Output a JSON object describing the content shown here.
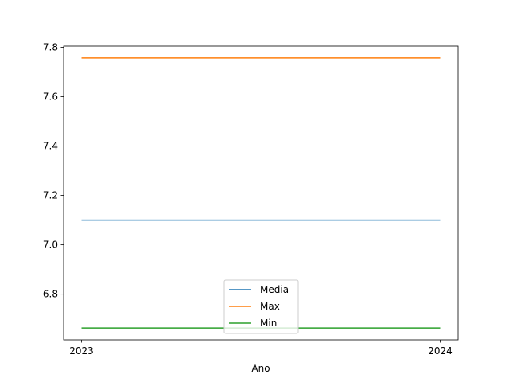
{
  "chart_data": {
    "type": "line",
    "title": "",
    "xlabel": "Ano",
    "ylabel": "",
    "x": [
      "2023",
      "2024"
    ],
    "ylim": [
      6.615,
      7.805
    ],
    "yticks": [
      "6.8",
      "7.0",
      "7.2",
      "7.4",
      "7.6",
      "7.8"
    ],
    "series": [
      {
        "name": "Media",
        "values": [
          7.1,
          7.1
        ],
        "color": "#1f77b4"
      },
      {
        "name": "Max",
        "values": [
          7.757,
          7.757
        ],
        "color": "#ff7f0e"
      },
      {
        "name": "Min",
        "values": [
          6.663,
          6.663
        ],
        "color": "#2ca02c"
      }
    ],
    "grid": false,
    "legend": "lower center"
  }
}
